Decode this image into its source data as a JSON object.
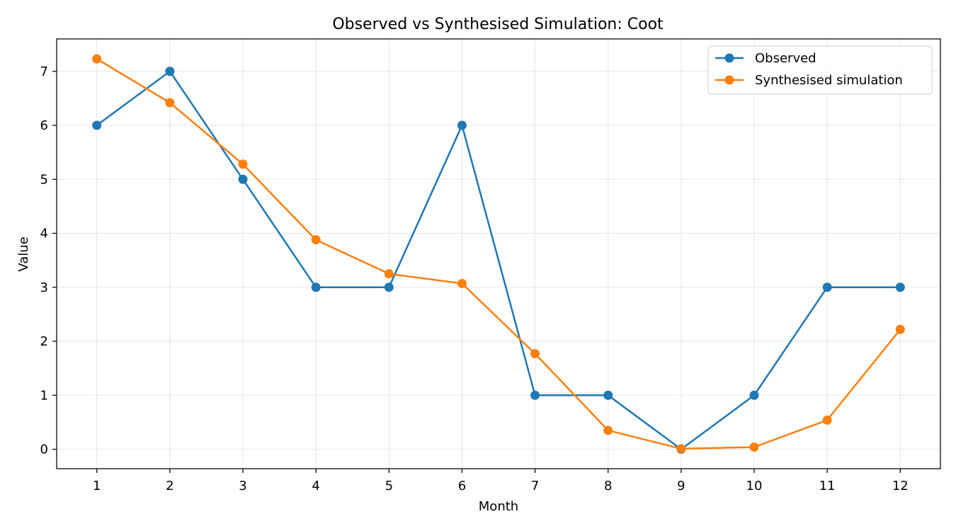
{
  "chart_data": {
    "type": "line",
    "title": "Observed vs Synthesised Simulation: Coot",
    "xlabel": "Month",
    "ylabel": "Value",
    "x": [
      1,
      2,
      3,
      4,
      5,
      6,
      7,
      8,
      9,
      10,
      11,
      12
    ],
    "xlim": [
      0.45,
      12.55
    ],
    "ylim": [
      -0.36,
      7.6
    ],
    "yticks": [
      0,
      1,
      2,
      3,
      4,
      5,
      6,
      7
    ],
    "grid": true,
    "legend_position": "top-right",
    "series": [
      {
        "name": "Observed",
        "color": "#1f77b4",
        "marker": "circle",
        "values": [
          6,
          7,
          5,
          3,
          3,
          6,
          1,
          1,
          0,
          1,
          3,
          3
        ]
      },
      {
        "name": "Synthesised simulation",
        "color": "#ff7f0e",
        "marker": "circle",
        "values": [
          7.23,
          6.42,
          5.28,
          3.88,
          3.25,
          3.07,
          1.77,
          0.35,
          0.01,
          0.04,
          0.54,
          2.22
        ]
      }
    ]
  }
}
